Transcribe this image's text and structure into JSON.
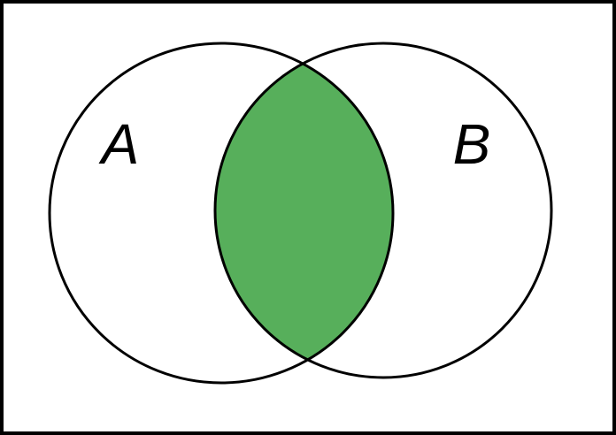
{
  "diagram": {
    "type": "venn",
    "sets": [
      {
        "id": "A",
        "label": "A"
      },
      {
        "id": "B",
        "label": "B"
      }
    ],
    "highlighted_region": "A ∩ B",
    "colors": {
      "background": "#ffffff",
      "outline": "#000000",
      "highlight": "#57af5b"
    }
  }
}
